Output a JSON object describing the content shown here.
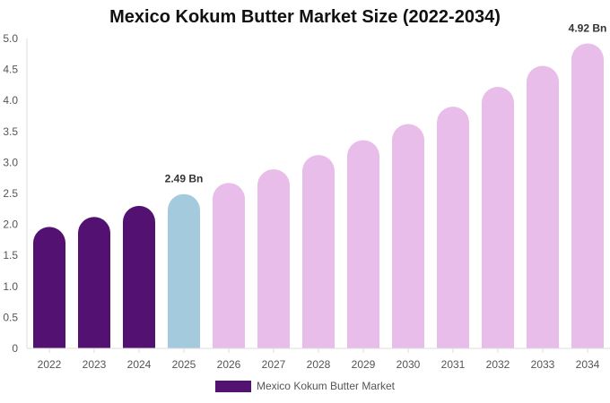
{
  "chart_data": {
    "type": "bar",
    "title": "Mexico Kokum Butter Market Size (2022-2034)",
    "xlabel": "",
    "ylabel": "",
    "categories": [
      "2022",
      "2023",
      "2024",
      "2025",
      "2026",
      "2027",
      "2028",
      "2029",
      "2030",
      "2031",
      "2032",
      "2033",
      "2034"
    ],
    "series": [
      {
        "name": "Mexico Kokum Butter Market",
        "values": [
          1.96,
          2.12,
          2.3,
          2.49,
          2.67,
          2.89,
          3.12,
          3.36,
          3.62,
          3.9,
          4.22,
          4.56,
          4.92
        ]
      }
    ],
    "ylim": [
      0,
      5.0
    ],
    "yticks": [
      "0",
      "0.5",
      "1.0",
      "1.5",
      "2.0",
      "2.5",
      "3.0",
      "3.5",
      "4.0",
      "4.5",
      "5.0"
    ],
    "data_labels": [
      {
        "index": 3,
        "text": "2.49 Bn"
      },
      {
        "index": 12,
        "text": "4.92 Bn"
      }
    ],
    "colors": {
      "historical": "#531271",
      "base_year": "#a4cbdd",
      "forecast": "#e8bde9",
      "legend": "#531271"
    },
    "grid": false,
    "legend_position": "bottom"
  }
}
